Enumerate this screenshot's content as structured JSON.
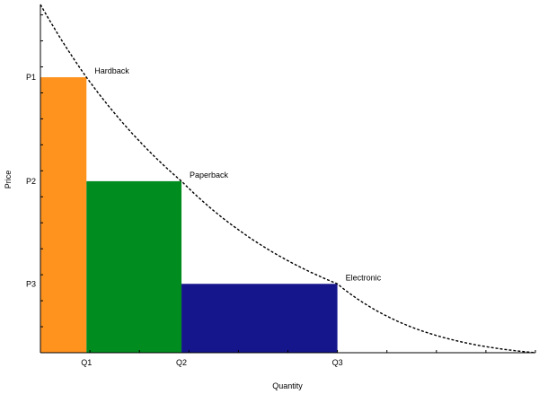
{
  "chart_data": {
    "type": "area",
    "xlabel": "Quantity",
    "ylabel": "Price",
    "x_tick_labels": [
      "Q1",
      "Q2",
      "Q3"
    ],
    "y_tick_labels": [
      "P1",
      "P2",
      "P3"
    ],
    "x_ticks": [
      1,
      2,
      3,
      4,
      5,
      6,
      7,
      8,
      9,
      10
    ],
    "y_ticks": [
      1,
      2,
      3,
      4,
      5,
      6,
      7,
      8,
      9,
      10,
      11,
      12,
      13
    ],
    "xlim": [
      0,
      10
    ],
    "ylim": [
      0,
      13.4
    ],
    "curve": {
      "style": "dashed",
      "color": "#000000",
      "x": [
        0,
        0.93,
        2.85,
        6.0,
        10.0
      ],
      "y": [
        13.4,
        10.6,
        6.6,
        2.65,
        0
      ]
    },
    "blocks": [
      {
        "name": "Hardback",
        "x0": 0,
        "x1": 0.93,
        "price": 10.6,
        "color": "#FF931E",
        "quantity_label": "Q1",
        "price_label": "P1"
      },
      {
        "name": "Paperback",
        "x0": 0.93,
        "x1": 2.85,
        "price": 6.6,
        "color": "#008C1E",
        "quantity_label": "Q2",
        "price_label": "P2"
      },
      {
        "name": "Electronic",
        "x0": 2.85,
        "x1": 6.0,
        "price": 2.65,
        "color": "#15168C",
        "quantity_label": "Q3",
        "price_label": "P3"
      }
    ]
  }
}
